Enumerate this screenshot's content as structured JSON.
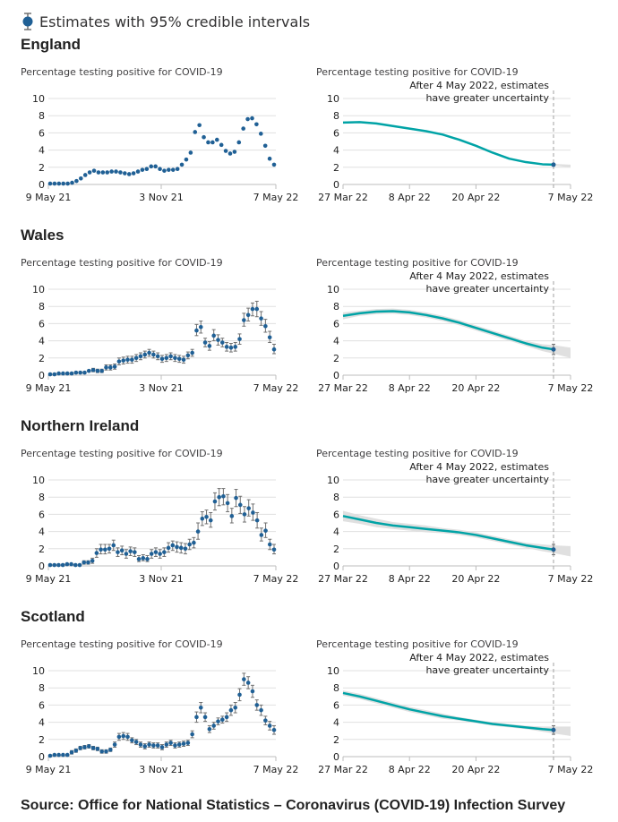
{
  "legend": {
    "label": "Estimates with 95% credible intervals",
    "icon": "dot-with-error-bar-icon",
    "color": "#206095"
  },
  "colors": {
    "dot": "#206095",
    "errorbar": "#707070",
    "nowcast_line": "#00a3a6",
    "band": "#e0e0e0",
    "grid": "#e0e0e0",
    "axis": "#bcbcbc",
    "cutoff": "#a0a0a0"
  },
  "source": "Source: Office for National Statistics – Coronavirus (COVID-19) Infection Survey",
  "regions": [
    {
      "title": "England"
    },
    {
      "title": "Wales"
    },
    {
      "title": "Northern Ireland"
    },
    {
      "title": "Scotland"
    }
  ],
  "chart_data": [
    {
      "region": "England",
      "panel": "long-term",
      "type": "scatter",
      "title": "Percentage testing positive for COVID-19",
      "xlabel": "",
      "ylabel": "",
      "x_tick_labels": [
        "9 May 21",
        "3 Nov 21",
        "7 May 22"
      ],
      "y_ticks": [
        0,
        2,
        4,
        6,
        8,
        10
      ],
      "ylim": [
        0,
        10
      ],
      "grid": true,
      "error_bars": false,
      "values": [
        0.1,
        0.1,
        0.1,
        0.1,
        0.1,
        0.2,
        0.4,
        0.7,
        1.1,
        1.4,
        1.6,
        1.4,
        1.4,
        1.4,
        1.5,
        1.5,
        1.4,
        1.3,
        1.2,
        1.3,
        1.5,
        1.7,
        1.8,
        2.1,
        2.1,
        1.8,
        1.6,
        1.7,
        1.7,
        1.8,
        2.3,
        2.9,
        3.7,
        6.1,
        6.9,
        5.5,
        4.9,
        4.9,
        5.2,
        4.6,
        3.9,
        3.6,
        3.8,
        4.9,
        6.5,
        7.6,
        7.7,
        7.0,
        5.9,
        4.5,
        3.0,
        2.3
      ],
      "lower": [],
      "upper": []
    },
    {
      "region": "England",
      "panel": "modelled",
      "type": "line",
      "title": "Percentage testing positive for COVID-19",
      "annotation": "After 4 May 2022, estimates have greater uncertainty",
      "x_tick_labels": [
        "27 Mar 22",
        "8 Apr 22",
        "20 Apr 22",
        "7 May 22"
      ],
      "y_ticks": [
        0,
        2,
        4,
        6,
        8,
        10
      ],
      "ylim": [
        0,
        10
      ],
      "grid": true,
      "x_days": [
        0,
        3,
        6,
        9,
        12,
        15,
        18,
        21,
        24,
        27,
        30,
        33,
        36,
        38
      ],
      "values": [
        7.2,
        7.25,
        7.1,
        6.8,
        6.5,
        6.2,
        5.8,
        5.2,
        4.5,
        3.7,
        3.0,
        2.6,
        2.35,
        2.3
      ],
      "lower": [
        7.1,
        7.15,
        7.0,
        6.7,
        6.4,
        6.1,
        5.7,
        5.1,
        4.4,
        3.6,
        2.9,
        2.5,
        2.25,
        2.2
      ],
      "upper": [
        7.3,
        7.35,
        7.2,
        6.9,
        6.6,
        6.3,
        5.9,
        5.3,
        4.6,
        3.8,
        3.1,
        2.7,
        2.45,
        2.4
      ],
      "extension_band": {
        "lower": [
          2.2,
          2.0
        ],
        "upper": [
          2.4,
          2.3
        ]
      },
      "point_estimate": {
        "value": 2.3,
        "lower": 2.2,
        "upper": 2.4
      }
    },
    {
      "region": "Wales",
      "panel": "long-term",
      "type": "scatter",
      "title": "Percentage testing positive for COVID-19",
      "x_tick_labels": [
        "9 May 21",
        "3 Nov 21",
        "7 May 22"
      ],
      "y_ticks": [
        0,
        2,
        4,
        6,
        8,
        10
      ],
      "ylim": [
        0,
        10
      ],
      "grid": true,
      "error_bars": true,
      "values": [
        0.1,
        0.1,
        0.2,
        0.2,
        0.2,
        0.2,
        0.3,
        0.3,
        0.3,
        0.5,
        0.6,
        0.5,
        0.5,
        0.9,
        0.9,
        1.0,
        1.6,
        1.7,
        1.8,
        1.8,
        2.0,
        2.2,
        2.4,
        2.6,
        2.4,
        2.2,
        1.9,
        2.0,
        2.2,
        2.0,
        1.9,
        1.8,
        2.3,
        2.6,
        5.2,
        5.6,
        3.8,
        3.4,
        4.6,
        4.1,
        3.8,
        3.3,
        3.2,
        3.3,
        4.2,
        6.4,
        7.0,
        7.7,
        7.7,
        6.6,
        5.7,
        4.4,
        3.0
      ],
      "lower": [
        0.0,
        0.0,
        0.1,
        0.1,
        0.1,
        0.1,
        0.2,
        0.2,
        0.2,
        0.4,
        0.4,
        0.3,
        0.3,
        0.6,
        0.6,
        0.7,
        1.2,
        1.3,
        1.4,
        1.4,
        1.6,
        1.8,
        2.0,
        2.2,
        2.0,
        1.8,
        1.5,
        1.6,
        1.8,
        1.6,
        1.5,
        1.4,
        1.9,
        2.2,
        4.6,
        4.9,
        3.3,
        2.9,
        4.0,
        3.5,
        3.3,
        2.8,
        2.7,
        2.8,
        3.6,
        5.7,
        6.3,
        6.9,
        6.8,
        5.8,
        5.0,
        3.8,
        2.5
      ],
      "upper": [
        0.2,
        0.2,
        0.3,
        0.3,
        0.3,
        0.3,
        0.4,
        0.4,
        0.4,
        0.6,
        0.8,
        0.7,
        0.7,
        1.2,
        1.2,
        1.3,
        2.0,
        2.1,
        2.2,
        2.2,
        2.4,
        2.6,
        2.8,
        3.0,
        2.8,
        2.6,
        2.3,
        2.4,
        2.6,
        2.4,
        2.3,
        2.2,
        2.7,
        3.0,
        5.9,
        6.3,
        4.3,
        3.9,
        5.3,
        4.7,
        4.3,
        3.8,
        3.7,
        3.8,
        4.8,
        7.2,
        7.8,
        8.4,
        8.6,
        7.4,
        6.5,
        5.1,
        3.6
      ]
    },
    {
      "region": "Wales",
      "panel": "modelled",
      "type": "line",
      "title": "Percentage testing positive for COVID-19",
      "annotation": "After 4 May 2022, estimates have greater uncertainty",
      "x_tick_labels": [
        "27 Mar 22",
        "8 Apr 22",
        "20 Apr 22",
        "7 May 22"
      ],
      "y_ticks": [
        0,
        2,
        4,
        6,
        8,
        10
      ],
      "ylim": [
        0,
        10
      ],
      "grid": true,
      "x_days": [
        0,
        3,
        6,
        9,
        12,
        15,
        18,
        21,
        24,
        27,
        30,
        33,
        36,
        38
      ],
      "values": [
        6.9,
        7.2,
        7.4,
        7.45,
        7.3,
        7.0,
        6.6,
        6.1,
        5.5,
        4.9,
        4.3,
        3.7,
        3.2,
        3.0
      ],
      "lower": [
        6.5,
        6.9,
        7.1,
        7.15,
        7.0,
        6.7,
        6.3,
        5.8,
        5.2,
        4.6,
        4.0,
        3.4,
        2.8,
        2.5
      ],
      "upper": [
        7.3,
        7.5,
        7.7,
        7.75,
        7.6,
        7.3,
        6.9,
        6.4,
        5.8,
        5.2,
        4.6,
        4.0,
        3.6,
        3.5
      ],
      "extension_band": {
        "lower": [
          2.5,
          2.0
        ],
        "upper": [
          3.5,
          3.2
        ]
      },
      "point_estimate": {
        "value": 3.0,
        "lower": 2.4,
        "upper": 3.6
      }
    },
    {
      "region": "Northern Ireland",
      "panel": "long-term",
      "type": "scatter",
      "title": "Percentage testing positive for COVID-19",
      "x_tick_labels": [
        "9 May 21",
        "3 Nov 21",
        "7 May 22"
      ],
      "y_ticks": [
        0,
        2,
        4,
        6,
        8,
        10
      ],
      "ylim": [
        0,
        10
      ],
      "grid": true,
      "error_bars": true,
      "values": [
        0.1,
        0.1,
        0.1,
        0.1,
        0.2,
        0.2,
        0.1,
        0.1,
        0.4,
        0.4,
        0.6,
        1.5,
        1.9,
        1.9,
        2.0,
        2.4,
        1.6,
        1.8,
        1.4,
        1.7,
        1.6,
        0.8,
        0.9,
        0.8,
        1.4,
        1.6,
        1.4,
        1.6,
        2.1,
        2.4,
        2.2,
        2.1,
        2.0,
        2.5,
        2.7,
        4.0,
        5.5,
        5.7,
        5.3,
        7.5,
        8.0,
        8.1,
        7.3,
        5.8,
        7.9,
        7.1,
        6.0,
        6.7,
        6.2,
        5.3,
        3.6,
        4.1,
        2.5,
        1.9
      ],
      "lower": [
        0.0,
        0.0,
        0.0,
        0.0,
        0.1,
        0.1,
        0.0,
        0.0,
        0.2,
        0.2,
        0.3,
        1.0,
        1.4,
        1.4,
        1.5,
        1.8,
        1.1,
        1.3,
        0.9,
        1.2,
        1.1,
        0.5,
        0.6,
        0.5,
        0.9,
        1.1,
        0.9,
        1.1,
        1.6,
        1.8,
        1.6,
        1.5,
        1.4,
        1.9,
        2.1,
        3.1,
        4.7,
        4.9,
        4.5,
        6.5,
        7.0,
        7.1,
        6.3,
        5.0,
        6.9,
        6.1,
        5.1,
        5.8,
        5.3,
        4.4,
        2.9,
        3.3,
        1.9,
        1.4
      ],
      "upper": [
        0.2,
        0.2,
        0.2,
        0.2,
        0.3,
        0.3,
        0.2,
        0.2,
        0.6,
        0.6,
        0.9,
        2.0,
        2.5,
        2.5,
        2.5,
        3.0,
        2.1,
        2.3,
        1.9,
        2.2,
        2.1,
        1.2,
        1.3,
        1.2,
        1.9,
        2.1,
        1.9,
        2.1,
        2.7,
        2.9,
        2.8,
        2.7,
        2.6,
        3.1,
        3.3,
        5.0,
        6.3,
        6.5,
        6.2,
        8.5,
        9.0,
        9.0,
        8.3,
        6.7,
        8.9,
        8.1,
        6.9,
        7.7,
        7.2,
        6.2,
        4.4,
        5.0,
        3.1,
        2.5
      ]
    },
    {
      "region": "Northern Ireland",
      "panel": "modelled",
      "type": "line",
      "title": "Percentage testing positive for COVID-19",
      "annotation": "After 4 May 2022, estimates have greater uncertainty",
      "x_tick_labels": [
        "27 Mar 22",
        "8 Apr 22",
        "20 Apr 22",
        "7 May 22"
      ],
      "y_ticks": [
        0,
        2,
        4,
        6,
        8,
        10
      ],
      "ylim": [
        0,
        10
      ],
      "grid": true,
      "x_days": [
        0,
        3,
        6,
        9,
        12,
        15,
        18,
        21,
        24,
        27,
        30,
        33,
        36,
        38
      ],
      "values": [
        5.8,
        5.4,
        5.0,
        4.7,
        4.5,
        4.3,
        4.1,
        3.9,
        3.6,
        3.2,
        2.8,
        2.4,
        2.1,
        1.9
      ],
      "lower": [
        5.2,
        4.9,
        4.5,
        4.3,
        4.1,
        3.9,
        3.8,
        3.6,
        3.3,
        2.9,
        2.5,
        2.1,
        1.7,
        1.5
      ],
      "upper": [
        6.4,
        5.9,
        5.5,
        5.1,
        4.9,
        4.7,
        4.4,
        4.2,
        3.9,
        3.5,
        3.1,
        2.7,
        2.5,
        2.4
      ],
      "extension_band": {
        "lower": [
          1.5,
          1.1
        ],
        "upper": [
          2.4,
          2.3
        ]
      },
      "point_estimate": {
        "value": 1.9,
        "lower": 1.3,
        "upper": 2.5
      }
    },
    {
      "region": "Scotland",
      "panel": "long-term",
      "type": "scatter",
      "title": "Percentage testing positive for COVID-19",
      "x_tick_labels": [
        "9 May 21",
        "3 Nov 21",
        "7 May 22"
      ],
      "y_ticks": [
        0,
        2,
        4,
        6,
        8,
        10
      ],
      "ylim": [
        0,
        10
      ],
      "grid": true,
      "error_bars": true,
      "values": [
        0.1,
        0.2,
        0.2,
        0.2,
        0.2,
        0.5,
        0.7,
        1.0,
        1.1,
        1.2,
        1.0,
        0.9,
        0.6,
        0.6,
        0.8,
        1.4,
        2.3,
        2.4,
        2.3,
        1.9,
        1.7,
        1.4,
        1.2,
        1.4,
        1.3,
        1.3,
        1.1,
        1.4,
        1.6,
        1.3,
        1.4,
        1.5,
        1.6,
        2.6,
        4.6,
        5.7,
        4.6,
        3.2,
        3.6,
        4.1,
        4.3,
        4.6,
        5.4,
        5.7,
        7.2,
        9.0,
        8.6,
        7.6,
        6.0,
        5.4,
        4.2,
        3.6,
        3.1
      ],
      "lower": [
        0.0,
        0.1,
        0.1,
        0.1,
        0.1,
        0.3,
        0.5,
        0.8,
        0.9,
        1.0,
        0.8,
        0.7,
        0.4,
        0.4,
        0.6,
        1.1,
        1.9,
        2.0,
        1.9,
        1.6,
        1.4,
        1.1,
        0.9,
        1.1,
        1.0,
        1.0,
        0.8,
        1.1,
        1.3,
        1.0,
        1.1,
        1.2,
        1.3,
        2.2,
        4.0,
        5.1,
        4.1,
        2.8,
        3.2,
        3.7,
        3.9,
        4.1,
        4.8,
        5.1,
        6.5,
        8.3,
        7.9,
        6.9,
        5.4,
        4.8,
        3.7,
        3.1,
        2.6
      ],
      "upper": [
        0.2,
        0.3,
        0.3,
        0.3,
        0.3,
        0.7,
        0.9,
        1.2,
        1.3,
        1.4,
        1.2,
        1.1,
        0.8,
        0.8,
        1.0,
        1.7,
        2.7,
        2.8,
        2.7,
        2.2,
        2.0,
        1.7,
        1.5,
        1.7,
        1.6,
        1.6,
        1.4,
        1.7,
        1.9,
        1.6,
        1.7,
        1.8,
        1.9,
        3.0,
        5.2,
        6.3,
        5.1,
        3.6,
        4.0,
        4.5,
        4.7,
        5.1,
        6.0,
        6.3,
        7.9,
        9.7,
        9.3,
        8.3,
        6.6,
        6.0,
        4.7,
        4.1,
        3.6
      ]
    },
    {
      "region": "Scotland",
      "panel": "modelled",
      "type": "line",
      "title": "Percentage testing positive for COVID-19",
      "annotation": "After 4 May 2022, estimates have greater uncertainty",
      "x_tick_labels": [
        "27 Mar 22",
        "8 Apr 22",
        "20 Apr 22",
        "7 May 22"
      ],
      "y_ticks": [
        0,
        2,
        4,
        6,
        8,
        10
      ],
      "ylim": [
        0,
        10
      ],
      "grid": true,
      "x_days": [
        0,
        3,
        6,
        9,
        12,
        15,
        18,
        21,
        24,
        27,
        30,
        33,
        36,
        38
      ],
      "values": [
        7.4,
        7.0,
        6.5,
        6.0,
        5.5,
        5.1,
        4.7,
        4.4,
        4.1,
        3.8,
        3.6,
        3.4,
        3.2,
        3.1
      ],
      "lower": [
        7.1,
        6.7,
        6.2,
        5.7,
        5.2,
        4.8,
        4.4,
        4.2,
        3.9,
        3.6,
        3.4,
        3.2,
        2.9,
        2.7
      ],
      "upper": [
        7.7,
        7.3,
        6.8,
        6.3,
        5.8,
        5.4,
        5.0,
        4.6,
        4.3,
        4.0,
        3.8,
        3.6,
        3.5,
        3.5
      ],
      "extension_band": {
        "lower": [
          2.7,
          2.4
        ],
        "upper": [
          3.5,
          3.5
        ]
      },
      "point_estimate": {
        "value": 3.1,
        "lower": 2.6,
        "upper": 3.6
      }
    }
  ]
}
